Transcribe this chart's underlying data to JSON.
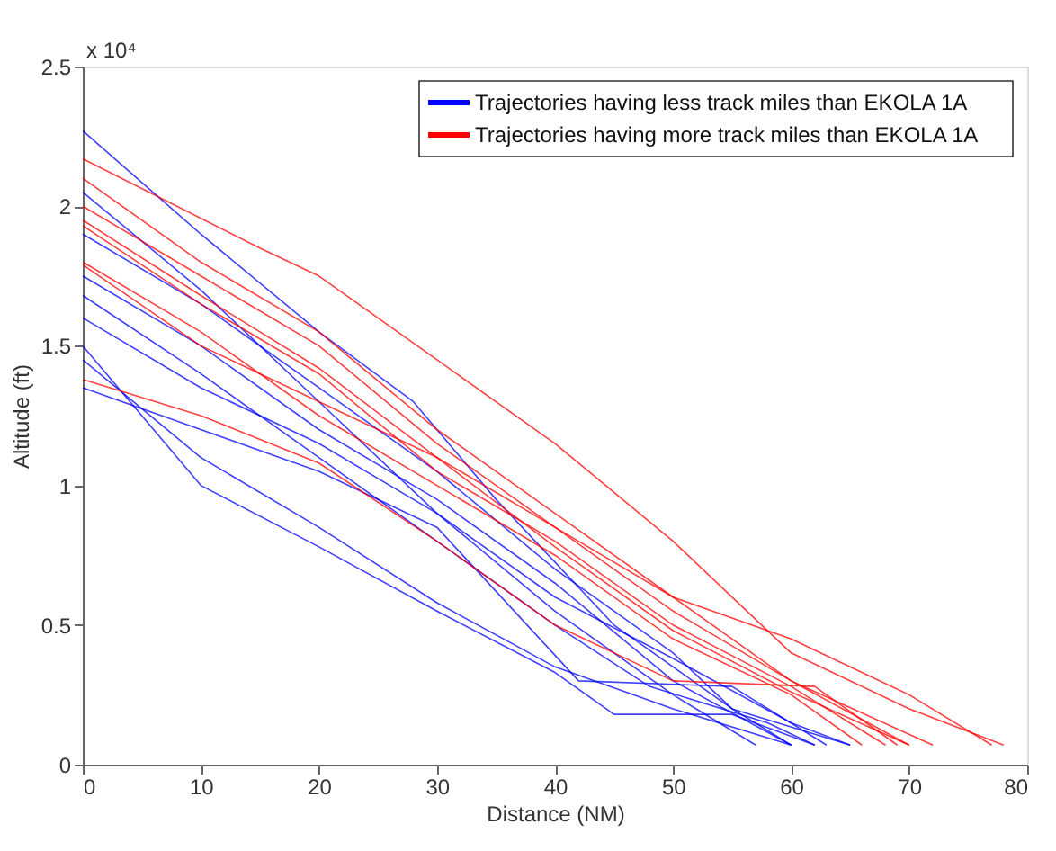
{
  "chart_data": {
    "type": "line",
    "xlabel": "Distance (NM)",
    "ylabel": "Altitude (ft)",
    "annotations": [
      "x 10⁴"
    ],
    "xlim": [
      0,
      80
    ],
    "xticks": [
      0,
      10,
      20,
      30,
      40,
      50,
      60,
      70,
      80
    ],
    "ylim": [
      0,
      2.5
    ],
    "yticks": [
      0,
      0.5,
      1,
      1.5,
      2,
      2.5
    ],
    "grid": false,
    "legend": "top right",
    "marker": "none",
    "line_style": "solid",
    "series": [
      {
        "name": "Trajectories having less track miles than EKOLA 1A",
        "color": "#0000ff",
        "x": [
          0,
          10,
          20,
          28,
          35,
          45,
          55,
          60
        ],
        "values": [
          2.27,
          1.9,
          1.55,
          1.3,
          0.95,
          0.5,
          0.2,
          0.07
        ]
      },
      {
        "color": "#0000ff",
        "x": [
          0,
          10,
          20,
          30,
          40,
          50,
          60
        ],
        "values": [
          1.75,
          1.5,
          1.2,
          0.95,
          0.65,
          0.3,
          0.07
        ]
      },
      {
        "color": "#0000ff",
        "x": [
          0,
          10,
          20,
          30,
          40,
          50,
          57
        ],
        "values": [
          1.6,
          1.35,
          1.15,
          0.9,
          0.55,
          0.25,
          0.07
        ]
      },
      {
        "color": "#0000ff",
        "x": [
          0,
          10,
          20,
          30,
          40,
          45,
          55,
          62
        ],
        "values": [
          1.5,
          1.0,
          0.78,
          0.55,
          0.33,
          0.18,
          0.18,
          0.07
        ]
      },
      {
        "color": "#0000ff",
        "x": [
          0,
          10,
          20,
          30,
          40,
          50,
          60
        ],
        "values": [
          1.45,
          1.1,
          0.85,
          0.58,
          0.35,
          0.2,
          0.07
        ]
      },
      {
        "color": "#0000ff",
        "x": [
          0,
          10,
          20,
          30,
          40,
          50,
          55,
          65
        ],
        "values": [
          1.9,
          1.65,
          1.35,
          1.05,
          0.7,
          0.4,
          0.2,
          0.07
        ]
      },
      {
        "color": "#0000ff",
        "x": [
          0,
          10,
          20,
          30,
          42,
          55,
          63
        ],
        "values": [
          1.35,
          1.2,
          1.05,
          0.85,
          0.3,
          0.28,
          0.07
        ]
      },
      {
        "color": "#0000ff",
        "x": [
          0,
          10,
          20,
          30,
          40,
          48,
          58,
          62
        ],
        "values": [
          1.68,
          1.4,
          1.1,
          0.8,
          0.5,
          0.28,
          0.15,
          0.07
        ]
      },
      {
        "color": "#0000ff",
        "x": [
          0,
          10,
          20,
          30,
          40,
          50,
          60,
          65
        ],
        "values": [
          2.05,
          1.7,
          1.3,
          0.9,
          0.6,
          0.38,
          0.15,
          0.07
        ]
      },
      {
        "name": "Trajectories having more track miles than EKOLA 1A",
        "color": "#ff0000",
        "x": [
          0,
          15,
          20,
          30,
          40,
          50,
          60,
          70,
          78
        ],
        "values": [
          2.17,
          1.85,
          1.75,
          1.45,
          1.15,
          0.8,
          0.4,
          0.2,
          0.07
        ]
      },
      {
        "color": "#ff0000",
        "x": [
          0,
          10,
          20,
          30,
          40,
          50,
          60,
          70
        ],
        "values": [
          2.0,
          1.75,
          1.5,
          1.15,
          0.85,
          0.55,
          0.3,
          0.07
        ]
      },
      {
        "color": "#ff0000",
        "x": [
          0,
          10,
          20,
          30,
          40,
          50,
          60,
          68
        ],
        "values": [
          1.93,
          1.65,
          1.4,
          1.05,
          0.8,
          0.5,
          0.28,
          0.07
        ]
      },
      {
        "color": "#ff0000",
        "x": [
          0,
          10,
          20,
          30,
          40,
          50,
          60,
          66
        ],
        "values": [
          1.8,
          1.55,
          1.25,
          1.0,
          0.75,
          0.45,
          0.25,
          0.07
        ]
      },
      {
        "color": "#ff0000",
        "x": [
          0,
          10,
          20,
          30,
          40,
          50,
          60,
          72
        ],
        "values": [
          2.1,
          1.8,
          1.55,
          1.2,
          0.9,
          0.6,
          0.3,
          0.07
        ]
      },
      {
        "color": "#ff0000",
        "x": [
          0,
          10,
          20,
          30,
          40,
          50,
          62,
          69
        ],
        "values": [
          1.38,
          1.25,
          1.08,
          0.8,
          0.5,
          0.3,
          0.28,
          0.07
        ]
      },
      {
        "color": "#ff0000",
        "x": [
          0,
          10,
          20,
          30,
          40,
          50,
          60,
          70,
          77
        ],
        "values": [
          1.79,
          1.5,
          1.3,
          1.1,
          0.85,
          0.6,
          0.45,
          0.25,
          0.07
        ]
      },
      {
        "color": "#ff0000",
        "x": [
          0,
          10,
          20,
          30,
          40,
          50,
          60,
          70
        ],
        "values": [
          1.95,
          1.68,
          1.42,
          1.1,
          0.78,
          0.48,
          0.26,
          0.07
        ]
      }
    ]
  }
}
